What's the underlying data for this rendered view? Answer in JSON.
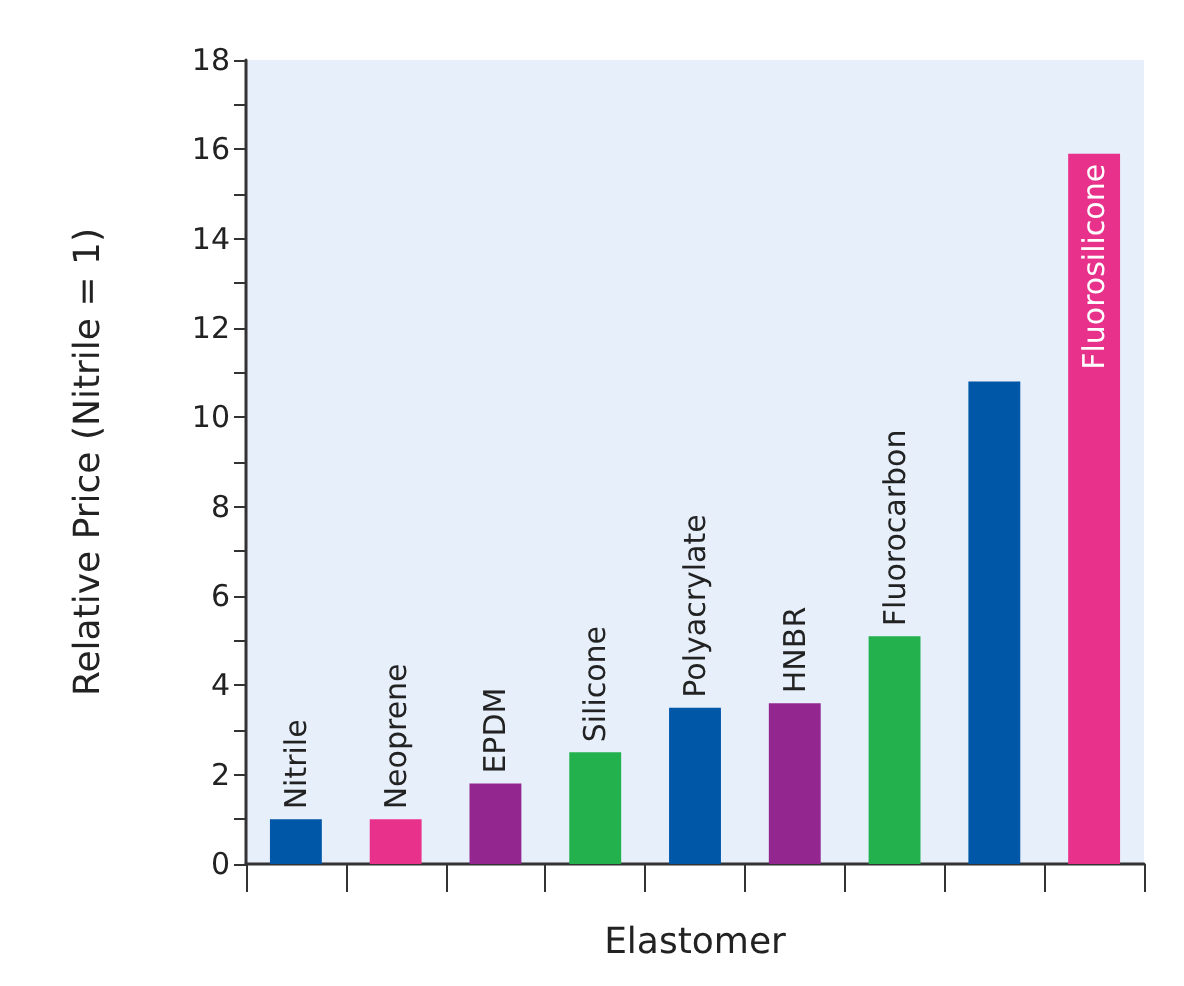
{
  "chart_data": {
    "type": "bar",
    "xlabel": "Elastomer",
    "ylabel": "Relative Price (Nitrile = 1)",
    "categories": [
      "Nitrile",
      "Neoprene",
      "EPDM",
      "Silicone",
      "Polyacrylate",
      "HNBR",
      "Fluorocarbon",
      null,
      "Fluorosilicone"
    ],
    "values": [
      1,
      1,
      1.8,
      2.5,
      3.5,
      3.6,
      5.1,
      10.8,
      15.9
    ],
    "colors": [
      "#0057a8",
      "#e8318a",
      "#93278f",
      "#22b14c",
      "#0057a8",
      "#93278f",
      "#22b14c",
      "#0057a8",
      "#e8318a"
    ],
    "ylim": [
      0,
      18
    ],
    "yticks": [
      0,
      {
        "value": 1,
        "label": null
      },
      2,
      {
        "value": 3,
        "label": null
      },
      4,
      {
        "value": 5,
        "label": null
      },
      6,
      {
        "value": 7,
        "label": null
      },
      8,
      {
        "value": 9,
        "label": null
      },
      10,
      {
        "value": 11,
        "label": null
      },
      12,
      {
        "value": 13,
        "label": null
      },
      14,
      {
        "value": 15,
        "label": null
      },
      16,
      {
        "value": 17,
        "label": null
      },
      18
    ],
    "grid": false
  }
}
